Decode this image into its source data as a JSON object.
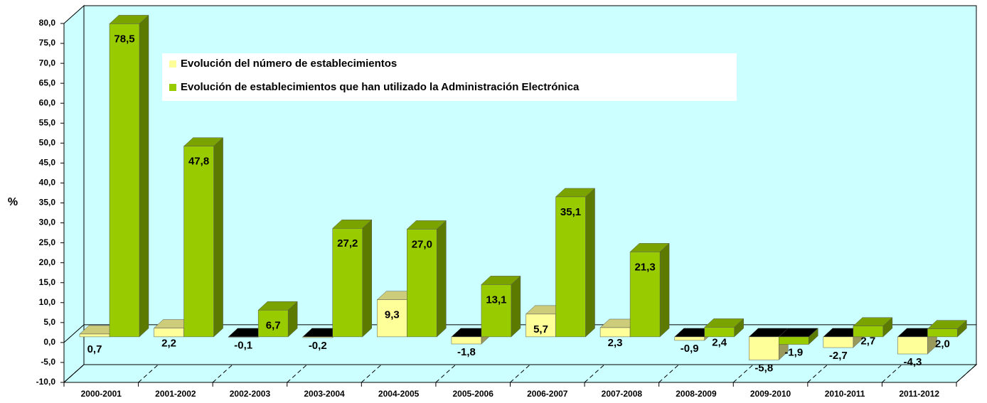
{
  "chart_data": {
    "type": "bar3d",
    "y_label": "%",
    "categories": [
      "2000-2001",
      "2001-2002",
      "2002-2003",
      "2003-2004",
      "2004-2005",
      "2005-2006",
      "2006-2007",
      "2007-2008",
      "2008-2009",
      "2009-2010",
      "2010-2011",
      "2011-2012"
    ],
    "series": [
      {
        "name": "Evolución del número de establecimientos",
        "color": "#ffff99",
        "values": [
          0.7,
          2.2,
          -0.1,
          -0.2,
          9.3,
          -1.8,
          5.7,
          2.3,
          -0.9,
          -5.8,
          -2.7,
          -4.3
        ],
        "value_labels": [
          "0,7",
          "2,2",
          "-0,1",
          "-0,2",
          "9,3",
          "-1,8",
          "5,7",
          "2,3",
          "-0,9",
          "-5,8",
          "-2,7",
          "-4,3"
        ]
      },
      {
        "name": "Evolución de establecimientos que han utilizado la Administración Electrónica",
        "color": "#99cc00",
        "values": [
          78.5,
          47.8,
          6.7,
          27.2,
          27.0,
          13.1,
          35.1,
          21.3,
          2.4,
          -1.9,
          2.7,
          2.0
        ],
        "value_labels": [
          "78,5",
          "47,8",
          "6,7",
          "27,2",
          "27,0",
          "13,1",
          "35,1",
          "21,3",
          "2,4",
          "-1,9",
          "2,7",
          "2,0"
        ]
      }
    ],
    "ylim": [
      -10,
      80
    ],
    "yticks": [
      {
        "value": -10,
        "label": "-10,0"
      },
      {
        "value": -5,
        "label": "-5,0"
      },
      {
        "value": 0,
        "label": "0,0"
      },
      {
        "value": 5,
        "label": "5,0"
      },
      {
        "value": 10,
        "label": "10,0"
      },
      {
        "value": 15,
        "label": "15,0"
      },
      {
        "value": 20,
        "label": "20,0"
      },
      {
        "value": 25,
        "label": "25,0"
      },
      {
        "value": 30,
        "label": "30,0"
      },
      {
        "value": 35,
        "label": "35,0"
      },
      {
        "value": 40,
        "label": "40,0"
      },
      {
        "value": 45,
        "label": "45,0"
      },
      {
        "value": 50,
        "label": "50,0"
      },
      {
        "value": 55,
        "label": "55,0"
      },
      {
        "value": 60,
        "label": "60,0"
      },
      {
        "value": 65,
        "label": "65,0"
      },
      {
        "value": 70,
        "label": "70,0"
      },
      {
        "value": 75,
        "label": "75,0"
      },
      {
        "value": 80,
        "label": "80,0"
      }
    ],
    "grid": false,
    "wall_color": "#ccffff"
  }
}
